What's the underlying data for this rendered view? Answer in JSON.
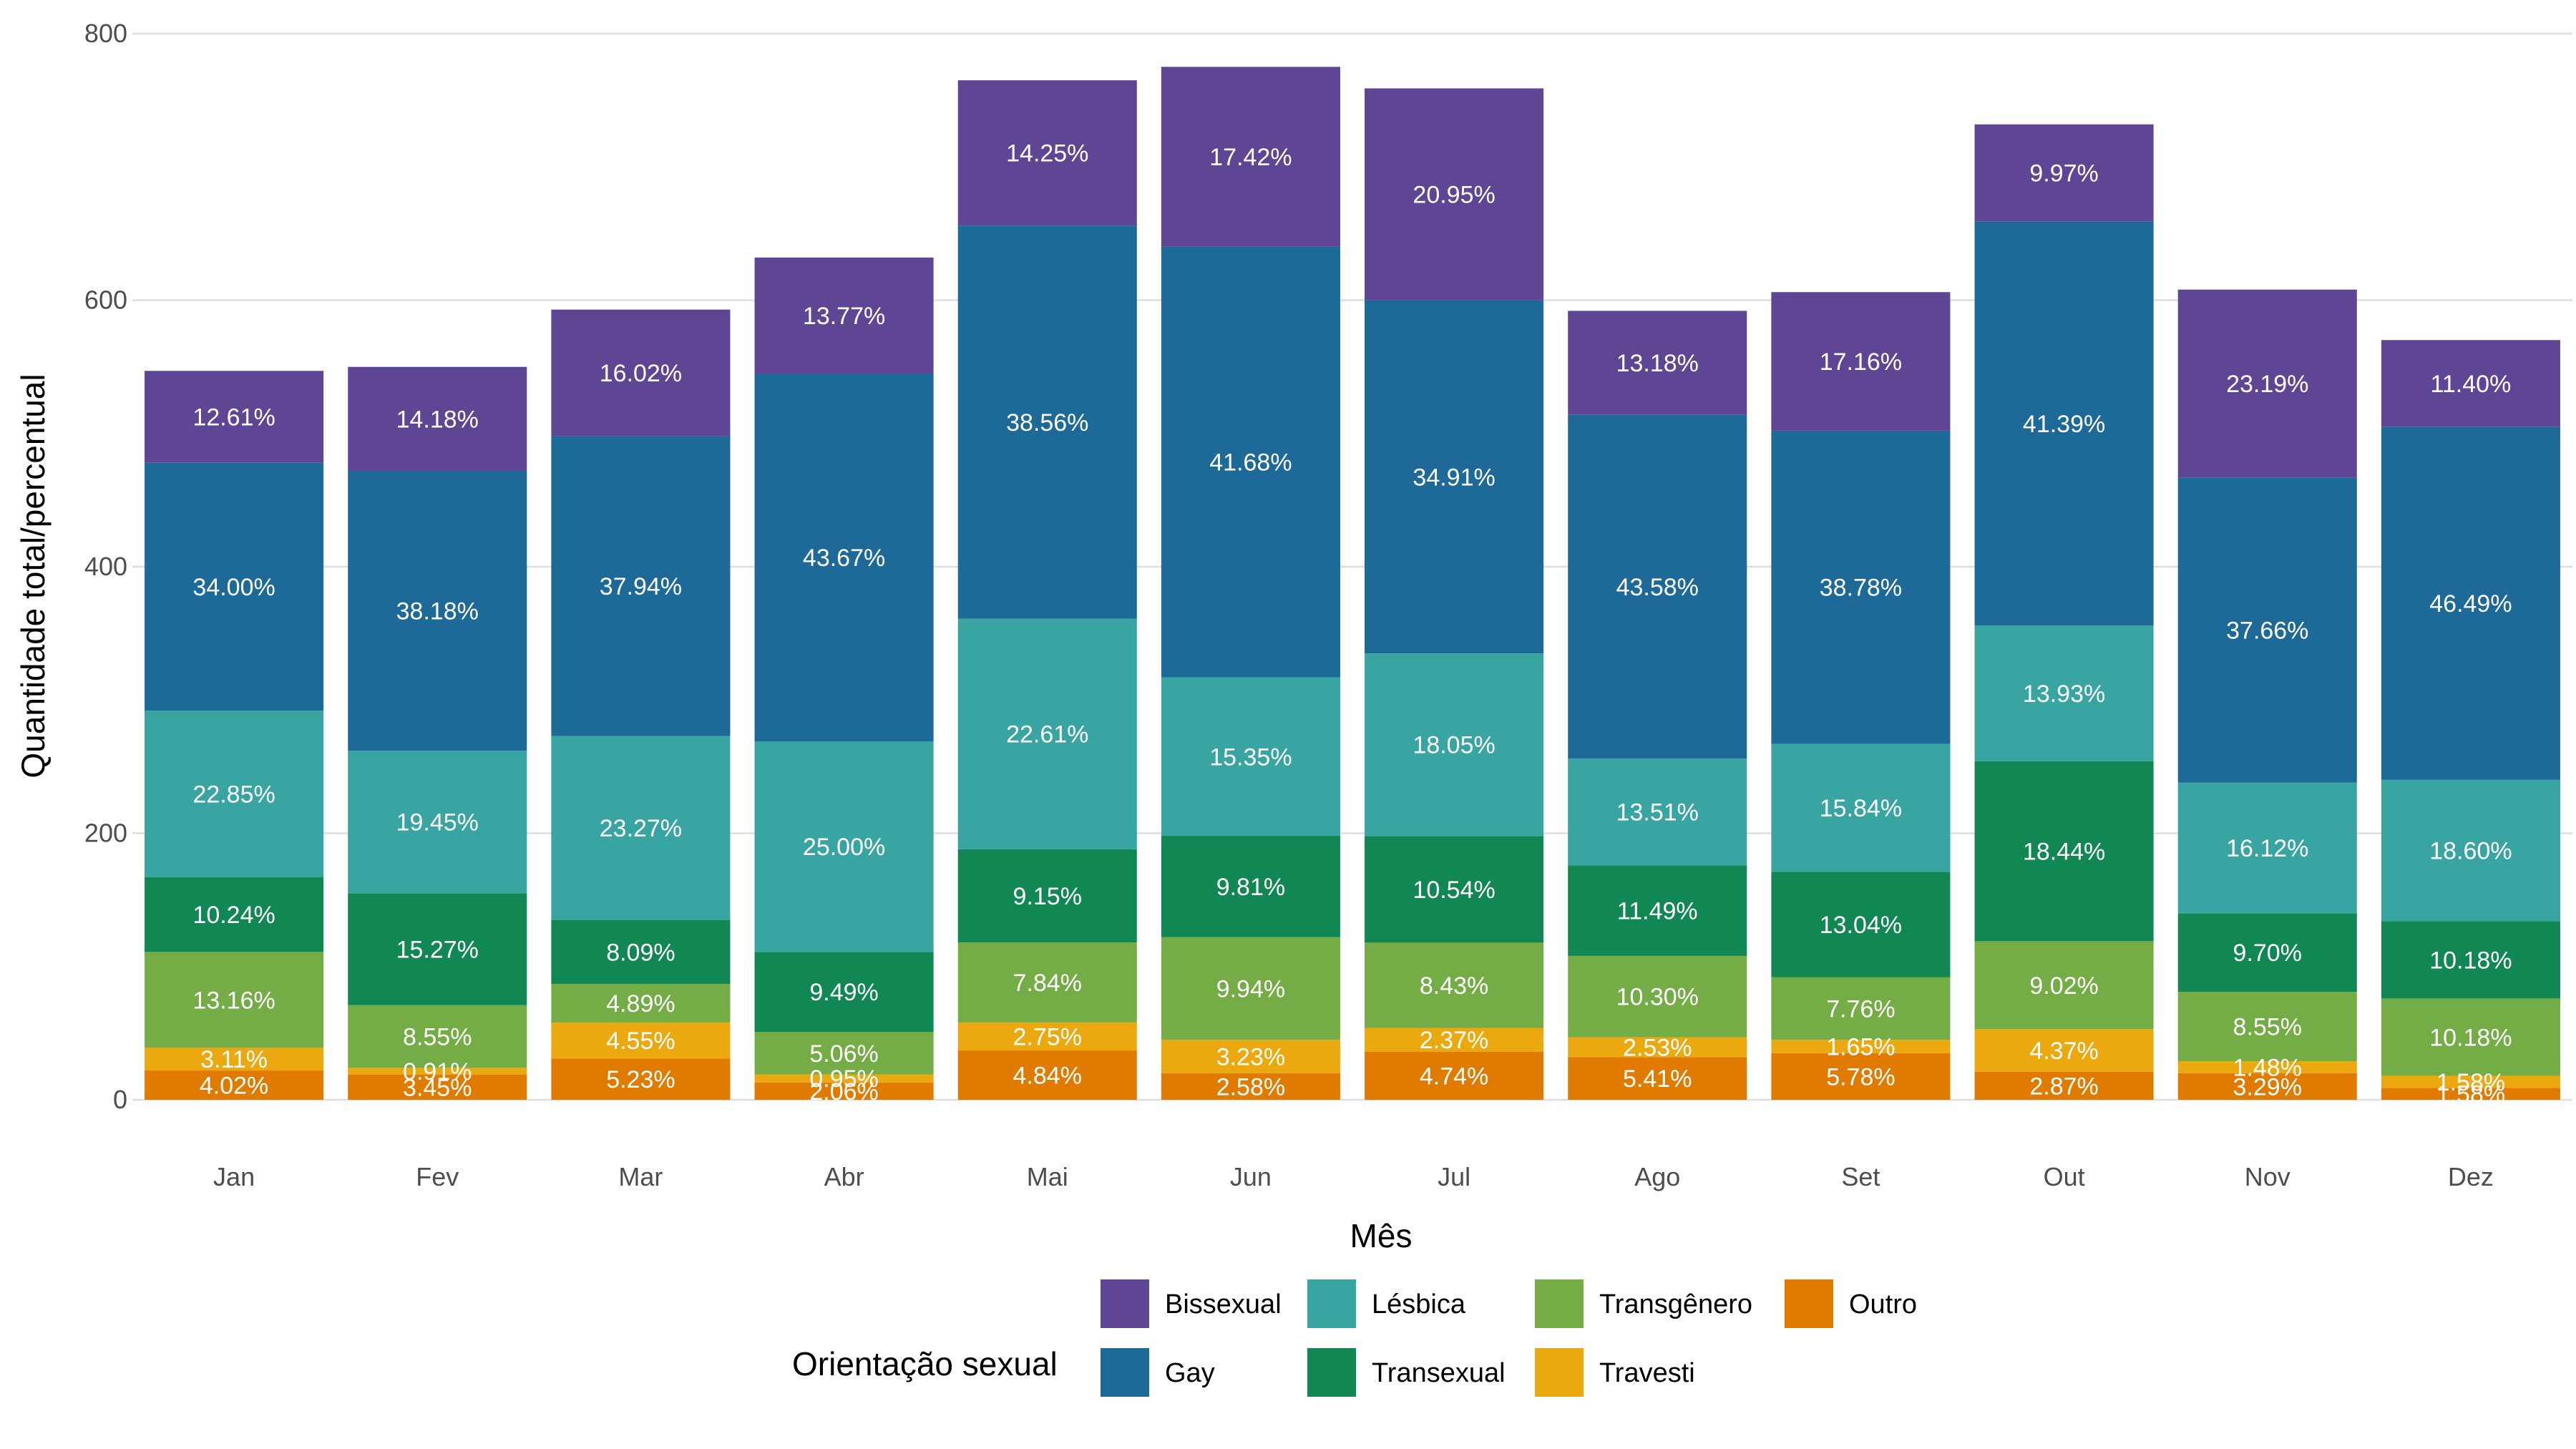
{
  "chart_data": {
    "type": "bar",
    "stacked": true,
    "title": "",
    "xlabel": "Mês",
    "ylabel": "Quantidade total/percentual",
    "ylim": [
      0,
      800
    ],
    "yticks": [
      0,
      200,
      400,
      600,
      800
    ],
    "grid": true,
    "legend_position": "bottom",
    "legend_title": "Orientação sexual",
    "categories": [
      "Jan",
      "Fev",
      "Mar",
      "Abr",
      "Mai",
      "Jun",
      "Jul",
      "Ago",
      "Set",
      "Out",
      "Nov",
      "Dez"
    ],
    "totals": [
      547,
      550,
      593,
      632,
      765,
      775,
      759,
      592,
      606,
      732,
      608,
      570
    ],
    "series": [
      {
        "name": "Outro",
        "color": "#E07B00",
        "percent": [
          4.02,
          3.45,
          5.23,
          2.06,
          4.84,
          2.58,
          4.74,
          5.41,
          5.78,
          2.87,
          3.29,
          1.58
        ],
        "labels": [
          "4.02%",
          "3.45%",
          "5.23%",
          "2.06%",
          "4.84%",
          "2.58%",
          "4.74%",
          "5.41%",
          "5.78%",
          "2.87%",
          "3.29%",
          "1.58%"
        ]
      },
      {
        "name": "Travesti",
        "color": "#EBA80F",
        "percent": [
          3.11,
          0.91,
          4.55,
          0.95,
          2.75,
          3.23,
          2.37,
          2.53,
          1.65,
          4.37,
          1.48,
          1.58
        ],
        "labels": [
          "3.11%",
          "0.91%",
          "4.55%",
          "0.95%",
          "2.75%",
          "3.23%",
          "2.37%",
          "2.53%",
          "1.65%",
          "4.37%",
          "1.48%",
          "1.58%"
        ]
      },
      {
        "name": "Transgênero",
        "color": "#74AC45",
        "percent": [
          13.16,
          8.55,
          4.89,
          5.06,
          7.84,
          9.94,
          8.43,
          10.3,
          7.76,
          9.02,
          8.55,
          10.18
        ],
        "labels": [
          "13.16%",
          "8.55%",
          "4.89%",
          "5.06%",
          "7.84%",
          "9.94%",
          "8.43%",
          "10.30%",
          "7.76%",
          "9.02%",
          "8.55%",
          "10.18%"
        ]
      },
      {
        "name": "Transexual",
        "color": "#118753",
        "percent": [
          10.24,
          15.27,
          8.09,
          9.49,
          9.15,
          9.81,
          10.54,
          11.49,
          13.04,
          18.44,
          9.7,
          10.18
        ],
        "labels": [
          "10.24%",
          "15.27%",
          "8.09%",
          "9.49%",
          "9.15%",
          "9.81%",
          "10.54%",
          "11.49%",
          "13.04%",
          "18.44%",
          "9.70%",
          "10.18%"
        ]
      },
      {
        "name": "Lésbica",
        "color": "#38A5A3",
        "percent": [
          22.85,
          19.45,
          23.27,
          25.0,
          22.61,
          15.35,
          18.05,
          13.51,
          15.84,
          13.93,
          16.12,
          18.6
        ],
        "labels": [
          "22.85%",
          "19.45%",
          "23.27%",
          "25.00%",
          "22.61%",
          "15.35%",
          "18.05%",
          "13.51%",
          "15.84%",
          "13.93%",
          "16.12%",
          "18.60%"
        ]
      },
      {
        "name": "Gay",
        "color": "#1D6997",
        "percent": [
          34.0,
          38.18,
          37.94,
          43.67,
          38.56,
          41.68,
          34.91,
          43.58,
          38.78,
          41.39,
          37.66,
          46.49
        ],
        "labels": [
          "34.00%",
          "38.18%",
          "37.94%",
          "43.67%",
          "38.56%",
          "41.68%",
          "34.91%",
          "43.58%",
          "38.78%",
          "41.39%",
          "37.66%",
          "46.49%"
        ]
      },
      {
        "name": "Bissexual",
        "color": "#5E4695",
        "percent": [
          12.61,
          14.18,
          16.02,
          13.77,
          14.25,
          17.42,
          20.95,
          13.18,
          17.16,
          9.97,
          23.19,
          11.4
        ],
        "labels": [
          "12.61%",
          "14.18%",
          "16.02%",
          "13.77%",
          "14.25%",
          "17.42%",
          "20.95%",
          "13.18%",
          "17.16%",
          "9.97%",
          "23.19%",
          "11.40%"
        ]
      }
    ],
    "legend_order": [
      "Bissexual",
      "Gay",
      "Lésbica",
      "Transexual",
      "Transgênero",
      "Travesti",
      "Outro"
    ]
  }
}
